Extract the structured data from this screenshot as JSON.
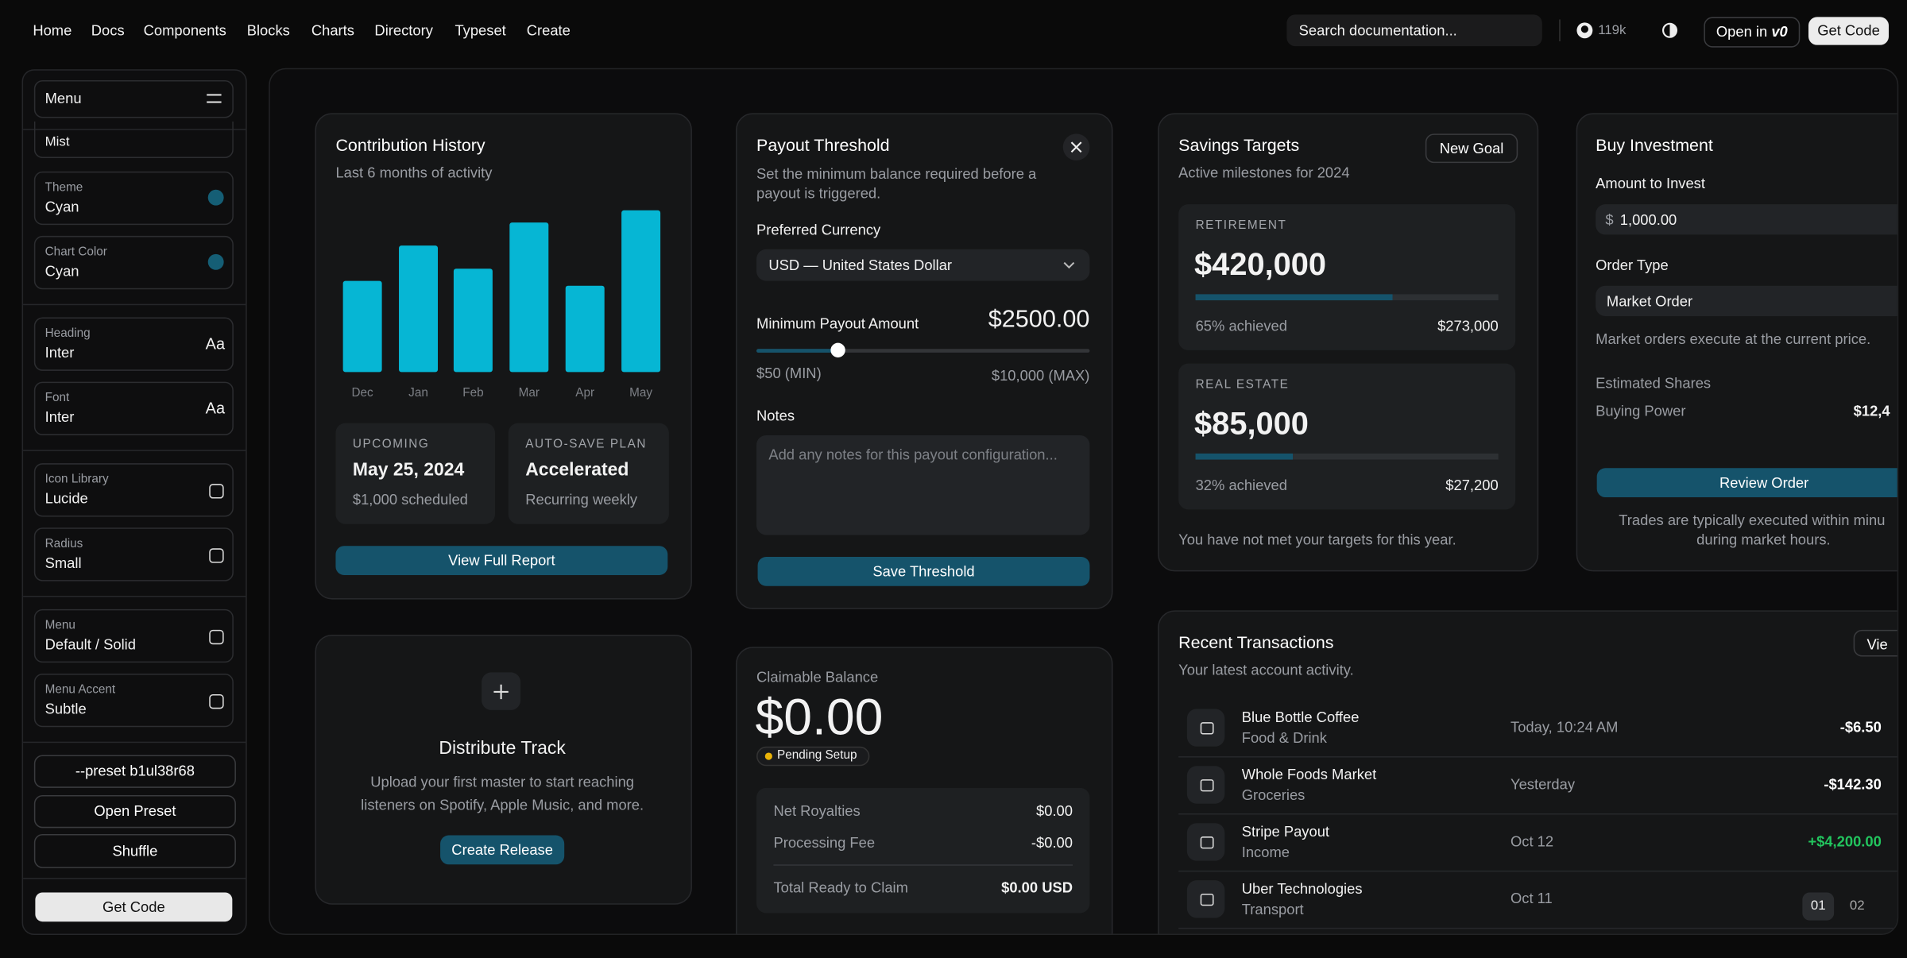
{
  "nav": {
    "links": [
      "Home",
      "Docs",
      "Components",
      "Blocks",
      "Charts",
      "Directory",
      "Typeset",
      "Create"
    ],
    "search": "Search documentation...",
    "stars": "119k",
    "open_in": "Open in",
    "open_in_logo": "v0",
    "get_code": "Get Code"
  },
  "sidebar": {
    "menu": "Menu",
    "partial": "Mist",
    "items": [
      {
        "label": "Theme",
        "value": "Cyan"
      },
      {
        "label": "Chart Color",
        "value": "Cyan"
      },
      {
        "label": "Heading",
        "value": "Inter",
        "icon": "Aa"
      },
      {
        "label": "Font",
        "value": "Inter",
        "icon": "Aa"
      },
      {
        "label": "Icon Library",
        "value": "Lucide"
      },
      {
        "label": "Radius",
        "value": "Small"
      },
      {
        "label": "Menu",
        "value": "Default / Solid"
      },
      {
        "label": "Menu Accent",
        "value": "Subtle"
      }
    ],
    "preset": "--preset b1ul38r68",
    "open_preset": "Open Preset",
    "shuffle": "Shuffle",
    "get_code": "Get Code"
  },
  "chart_data": {
    "type": "bar",
    "title": "Contribution History",
    "subtitle": "Last 6 months of activity",
    "categories": [
      "Dec",
      "Jan",
      "Feb",
      "Mar",
      "Apr",
      "May"
    ],
    "values": [
      75,
      104,
      85,
      123,
      71,
      133
    ],
    "ylim": [
      0,
      140
    ],
    "color": "#06b6d4"
  },
  "contribution": {
    "tiles": [
      {
        "label": "UPCOMING",
        "value": "May 25, 2024",
        "note": "$1,000 scheduled"
      },
      {
        "label": "AUTO-SAVE PLAN",
        "value": "Accelerated",
        "note": "Recurring weekly"
      }
    ],
    "button": "View Full Report"
  },
  "distribute": {
    "title": "Distribute Track",
    "description": [
      "Upload your first master to start reaching",
      "listeners on Spotify, Apple Music, and more."
    ],
    "button": "Create Release"
  },
  "payout": {
    "title": "Payout Threshold",
    "description": [
      "Set the minimum balance required before a",
      "payout is triggered."
    ],
    "currency_label": "Preferred Currency",
    "currency": "USD — United States Dollar",
    "amount_label": "Minimum Payout Amount",
    "slider": {
      "value": 2500,
      "value_label": "$2500.00",
      "min": 50,
      "min_label": "$50 (MIN)",
      "max": 10000,
      "max_label": "$10,000 (MAX)"
    },
    "notes_label": "Notes",
    "notes_placeholder": "Add any notes for this payout configuration...",
    "button": "Save Threshold"
  },
  "claim": {
    "label": "Claimable Balance",
    "amount": "$0.00",
    "status": "Pending Setup",
    "rows": [
      [
        "Net Royalties",
        "$0.00"
      ],
      [
        "Processing Fee",
        "-$0.00"
      ]
    ],
    "total": [
      "Total Ready to Claim",
      "$0.00 USD"
    ]
  },
  "savings": {
    "title": "Savings Targets",
    "subtitle": "Active milestones for 2024",
    "button": "New Goal",
    "goals": [
      {
        "label": "RETIREMENT",
        "amount": "$420,000",
        "progress": 65,
        "progress_label": "65% achieved",
        "saved": "$273,000"
      },
      {
        "label": "REAL ESTATE",
        "amount": "$85,000",
        "progress": 32,
        "progress_label": "32% achieved",
        "saved": "$27,200"
      }
    ],
    "footnote": "You have not met your targets for this year."
  },
  "invest": {
    "title": "Buy Investment",
    "amount_label": "Amount to Invest",
    "currency_symbol": "$",
    "amount": "1,000.00",
    "order_label": "Order Type",
    "order": "Market Order",
    "order_note": "Market orders execute at the current price.",
    "shares_label": "Estimated Shares",
    "power_label": "Buying Power",
    "power": "$12,4",
    "button": "Review Order",
    "footnote": [
      "Trades are typically executed within minu",
      "during market hours."
    ]
  },
  "transactions": {
    "title": "Recent Transactions",
    "subtitle": "Your latest account activity.",
    "button": "Vie",
    "rows": [
      {
        "name": "Blue Bottle Coffee",
        "category": "Food & Drink",
        "date": "Today, 10:24 AM",
        "amount": "-$6.50"
      },
      {
        "name": "Whole Foods Market",
        "category": "Groceries",
        "date": "Yesterday",
        "amount": "-$142.30"
      },
      {
        "name": "Stripe Payout",
        "category": "Income",
        "date": "Oct 12",
        "amount": "+$4,200.00"
      },
      {
        "name": "Uber Technologies",
        "category": "Transport",
        "date": "Oct 11"
      }
    ],
    "pages": [
      "01",
      "02"
    ]
  }
}
